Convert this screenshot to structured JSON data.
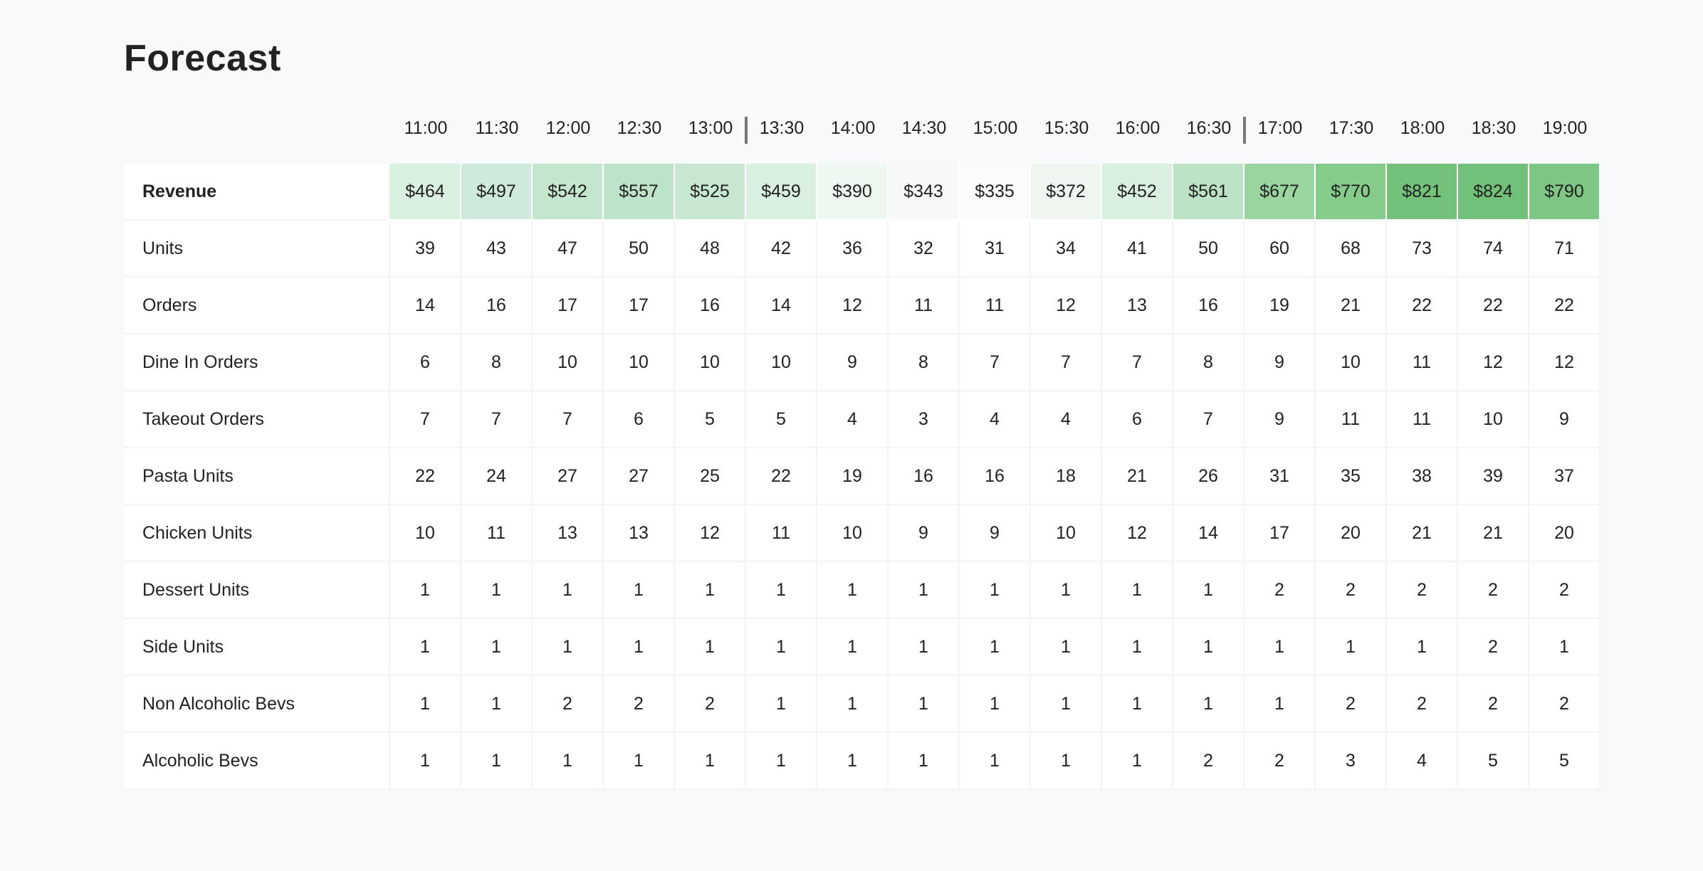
{
  "title": "Forecast",
  "times": [
    "11:00",
    "11:30",
    "12:00",
    "12:30",
    "13:00",
    "13:30",
    "14:00",
    "14:30",
    "15:00",
    "15:30",
    "16:00",
    "16:30",
    "17:00",
    "17:30",
    "18:00",
    "18:30",
    "19:00"
  ],
  "rows": [
    {
      "label": "Revenue",
      "bold": true,
      "values": [
        "$464",
        "$497",
        "$542",
        "$557",
        "$525",
        "$459",
        "$390",
        "$343",
        "$335",
        "$372",
        "$452",
        "$561",
        "$677",
        "$770",
        "$821",
        "$824",
        "$790"
      ],
      "colors": [
        "#d9efdf",
        "#cdeadb",
        "#c3e6cc",
        "#bde4c8",
        "#c8e7d1",
        "#d9efdf",
        "#eef7f0",
        "#f6f9f7",
        "#fafbfa",
        "#eef6ef",
        "#d9efdf",
        "#bce3c6",
        "#9ad49f",
        "#85cb8a",
        "#74c27a",
        "#72c178",
        "#7ec684"
      ]
    },
    {
      "label": "Units",
      "values": [
        "39",
        "43",
        "47",
        "50",
        "48",
        "42",
        "36",
        "32",
        "31",
        "34",
        "41",
        "50",
        "60",
        "68",
        "73",
        "74",
        "71"
      ]
    },
    {
      "label": "Orders",
      "values": [
        "14",
        "16",
        "17",
        "17",
        "16",
        "14",
        "12",
        "11",
        "11",
        "12",
        "13",
        "16",
        "19",
        "21",
        "22",
        "22",
        "22"
      ]
    },
    {
      "label": "Dine In Orders",
      "values": [
        "6",
        "8",
        "10",
        "10",
        "10",
        "10",
        "9",
        "8",
        "7",
        "7",
        "7",
        "8",
        "9",
        "10",
        "11",
        "12",
        "12"
      ]
    },
    {
      "label": "Takeout Orders",
      "values": [
        "7",
        "7",
        "7",
        "6",
        "5",
        "5",
        "4",
        "3",
        "4",
        "4",
        "6",
        "7",
        "9",
        "11",
        "11",
        "10",
        "9"
      ]
    },
    {
      "label": "Pasta Units",
      "values": [
        "22",
        "24",
        "27",
        "27",
        "25",
        "22",
        "19",
        "16",
        "16",
        "18",
        "21",
        "26",
        "31",
        "35",
        "38",
        "39",
        "37"
      ]
    },
    {
      "label": "Chicken Units",
      "values": [
        "10",
        "11",
        "13",
        "13",
        "12",
        "11",
        "10",
        "9",
        "9",
        "10",
        "12",
        "14",
        "17",
        "20",
        "21",
        "21",
        "20"
      ]
    },
    {
      "label": "Dessert Units",
      "values": [
        "1",
        "1",
        "1",
        "1",
        "1",
        "1",
        "1",
        "1",
        "1",
        "1",
        "1",
        "1",
        "2",
        "2",
        "2",
        "2",
        "2"
      ]
    },
    {
      "label": "Side Units",
      "values": [
        "1",
        "1",
        "1",
        "1",
        "1",
        "1",
        "1",
        "1",
        "1",
        "1",
        "1",
        "1",
        "1",
        "1",
        "1",
        "2",
        "1"
      ]
    },
    {
      "label": "Non Alcoholic Bevs",
      "values": [
        "1",
        "1",
        "2",
        "2",
        "2",
        "1",
        "1",
        "1",
        "1",
        "1",
        "1",
        "1",
        "1",
        "2",
        "2",
        "2",
        "2"
      ]
    },
    {
      "label": "Alcoholic Bevs",
      "values": [
        "1",
        "1",
        "1",
        "1",
        "1",
        "1",
        "1",
        "1",
        "1",
        "1",
        "1",
        "2",
        "2",
        "3",
        "4",
        "5",
        "5"
      ]
    }
  ]
}
